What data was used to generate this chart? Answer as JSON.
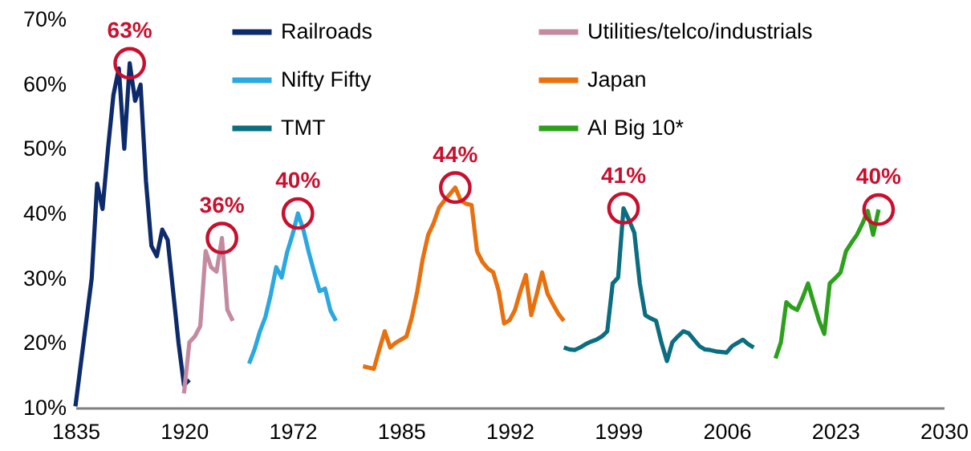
{
  "chart_data": {
    "type": "line",
    "legend": "top",
    "grid": false,
    "line_style": "solid",
    "marker": "none",
    "categories": [
      "1835",
      null,
      null,
      null,
      null,
      null,
      null,
      null,
      null,
      null,
      null,
      null,
      null,
      null,
      null,
      null,
      null,
      null,
      null,
      null,
      "1920",
      null,
      null,
      null,
      null,
      null,
      null,
      null,
      null,
      null,
      null,
      null,
      null,
      null,
      null,
      null,
      null,
      null,
      null,
      null,
      "1972",
      null,
      null,
      null,
      null,
      null,
      null,
      null,
      null,
      null,
      null,
      null,
      null,
      null,
      null,
      null,
      null,
      null,
      null,
      null,
      "1985",
      null,
      null,
      null,
      null,
      null,
      null,
      null,
      null,
      null,
      null,
      null,
      null,
      null,
      null,
      null,
      null,
      null,
      null,
      null,
      "1992",
      null,
      null,
      null,
      null,
      null,
      null,
      null,
      null,
      null,
      null,
      null,
      null,
      null,
      null,
      null,
      null,
      null,
      null,
      null,
      "1999",
      null,
      null,
      null,
      null,
      null,
      null,
      null,
      null,
      null,
      null,
      null,
      null,
      null,
      null,
      null,
      null,
      null,
      null,
      null,
      "2006",
      null,
      null,
      null,
      null,
      null,
      null,
      null,
      null,
      null,
      null,
      null,
      null,
      null,
      null,
      null,
      null,
      null,
      null,
      null,
      "2023",
      null,
      null,
      null,
      null,
      null,
      null,
      null,
      null,
      null,
      null,
      null,
      null,
      null,
      null,
      null,
      null,
      null,
      null,
      null,
      "2030"
    ],
    "ylim": [
      10,
      70
    ],
    "yticks": [
      {
        "value": 10,
        "label": "10%"
      },
      {
        "value": 20,
        "label": "20%"
      },
      {
        "value": 30,
        "label": "30%"
      },
      {
        "value": 40,
        "label": "40%"
      },
      {
        "value": 50,
        "label": "50%"
      },
      {
        "value": 60,
        "label": "60%"
      },
      {
        "value": 70,
        "label": "70%"
      }
    ],
    "series": [
      {
        "name": "Railroads",
        "color": "#0d2b6b",
        "values": [
          10.2,
          16.8,
          23.4,
          30,
          44.6,
          40.7,
          50,
          58.3,
          62.4,
          50,
          63.2,
          57.4,
          59.9,
          45,
          35,
          33.4,
          37.5,
          35.9,
          28,
          20,
          13.5,
          14.3,
          null,
          null,
          null,
          null,
          null,
          null,
          null,
          null,
          null,
          null,
          null,
          null,
          null,
          null,
          null,
          null,
          null,
          null,
          null,
          null,
          null,
          null,
          null,
          null,
          null,
          null,
          null,
          null,
          null,
          null,
          null,
          null,
          null,
          null,
          null,
          null,
          null,
          null,
          null,
          null,
          null,
          null,
          null,
          null,
          null,
          null,
          null,
          null,
          null,
          null,
          null,
          null,
          null,
          null,
          null,
          null,
          null,
          null,
          null,
          null,
          null,
          null,
          null,
          null,
          null,
          null,
          null,
          null,
          null,
          null,
          null,
          null,
          null,
          null,
          null,
          null,
          null,
          null,
          null,
          null,
          null,
          null,
          null,
          null,
          null,
          null,
          null,
          null,
          null,
          null,
          null,
          null,
          null,
          null,
          null,
          null,
          null,
          null,
          null,
          null,
          null,
          null,
          null,
          null,
          null,
          null,
          null,
          null,
          null,
          null,
          null,
          null,
          null,
          null,
          null,
          null,
          null,
          null,
          null,
          null,
          null,
          null,
          null,
          null,
          null,
          null,
          null,
          null,
          null,
          null,
          null,
          null,
          null,
          null,
          null,
          null,
          null,
          null,
          null
        ]
      },
      {
        "name": "Utilities/telco/industrials",
        "color": "#c48aa0",
        "values": [
          null,
          null,
          null,
          null,
          null,
          null,
          null,
          null,
          null,
          null,
          null,
          null,
          null,
          null,
          null,
          null,
          null,
          null,
          null,
          null,
          12.2,
          20.1,
          21,
          22.6,
          34.2,
          31.7,
          31,
          36.2,
          25.1,
          23.4,
          null,
          null,
          null,
          null,
          null,
          null,
          null,
          null,
          null,
          null,
          null,
          null,
          null,
          null,
          null,
          null,
          null,
          null,
          null,
          null,
          null,
          null,
          null,
          null,
          null,
          null,
          null,
          null,
          null,
          null,
          null,
          null,
          null,
          null,
          null,
          null,
          null,
          null,
          null,
          null,
          null,
          null,
          null,
          null,
          null,
          null,
          null,
          null,
          null,
          null,
          null,
          null,
          null,
          null,
          null,
          null,
          null,
          null,
          null,
          null,
          null,
          null,
          null,
          null,
          null,
          null,
          null,
          null,
          null,
          null,
          null,
          null,
          null,
          null,
          null,
          null,
          null,
          null,
          null,
          null,
          null,
          null,
          null,
          null,
          null,
          null,
          null,
          null,
          null,
          null,
          null,
          null,
          null,
          null,
          null,
          null,
          null,
          null,
          null,
          null,
          null,
          null,
          null,
          null,
          null,
          null,
          null,
          null,
          null,
          null,
          null,
          null,
          null,
          null,
          null,
          null,
          null,
          null,
          null,
          null,
          null,
          null,
          null,
          null,
          null,
          null,
          null,
          null,
          null,
          null,
          null
        ]
      },
      {
        "name": "Nifty Fifty",
        "color": "#2aa8e0",
        "values": [
          null,
          null,
          null,
          null,
          null,
          null,
          null,
          null,
          null,
          null,
          null,
          null,
          null,
          null,
          null,
          null,
          null,
          null,
          null,
          null,
          null,
          null,
          null,
          null,
          null,
          null,
          null,
          null,
          null,
          null,
          null,
          null,
          16.8,
          19,
          21.8,
          24,
          27.5,
          31.7,
          30.1,
          34,
          36.7,
          40,
          37.5,
          34,
          30.9,
          28,
          28.4,
          25,
          23.4,
          null,
          null,
          null,
          null,
          null,
          null,
          null,
          null,
          null,
          null,
          null,
          null,
          null,
          null,
          null,
          null,
          null,
          null,
          null,
          null,
          null,
          null,
          null,
          null,
          null,
          null,
          null,
          null,
          null,
          null,
          null,
          null,
          null,
          null,
          null,
          null,
          null,
          null,
          null,
          null,
          null,
          null,
          null,
          null,
          null,
          null,
          null,
          null,
          null,
          null,
          null,
          null,
          null,
          null,
          null,
          null,
          null,
          null,
          null,
          null,
          null,
          null,
          null,
          null,
          null,
          null,
          null,
          null,
          null,
          null,
          null,
          null,
          null,
          null,
          null,
          null,
          null,
          null,
          null,
          null,
          null,
          null,
          null,
          null,
          null,
          null,
          null,
          null,
          null,
          null,
          null,
          null,
          null,
          null,
          null,
          null,
          null,
          null,
          null,
          null,
          null,
          null,
          null,
          null,
          null,
          null,
          null,
          null,
          null,
          null,
          null,
          null
        ]
      },
      {
        "name": "Japan",
        "color": "#e8700e",
        "values": [
          null,
          null,
          null,
          null,
          null,
          null,
          null,
          null,
          null,
          null,
          null,
          null,
          null,
          null,
          null,
          null,
          null,
          null,
          null,
          null,
          null,
          null,
          null,
          null,
          null,
          null,
          null,
          null,
          null,
          null,
          null,
          null,
          null,
          null,
          null,
          null,
          null,
          null,
          null,
          null,
          null,
          null,
          null,
          null,
          null,
          null,
          null,
          null,
          null,
          null,
          null,
          null,
          null,
          16.4,
          16.2,
          16,
          19,
          21.8,
          19.3,
          20,
          20.5,
          21,
          24,
          28,
          33,
          36.7,
          38.5,
          40.9,
          42,
          43,
          44,
          42,
          41.5,
          41.3,
          34.2,
          32.5,
          31.5,
          30.9,
          28,
          23,
          23.5,
          25.1,
          28,
          30.5,
          24.3,
          27.5,
          30.9,
          27.6,
          26,
          24.5,
          23.4,
          null,
          null,
          null,
          null,
          null,
          null,
          null,
          null,
          null,
          null,
          null,
          null,
          null,
          null,
          null,
          null,
          null,
          null,
          null,
          null,
          null,
          null,
          null,
          null,
          null,
          null,
          null,
          null,
          null,
          null,
          null,
          null,
          null,
          null,
          null,
          null,
          null,
          null,
          null,
          null,
          null,
          null,
          null,
          null,
          null,
          null,
          null,
          null,
          null,
          null,
          null,
          null,
          null,
          null,
          null,
          null,
          null,
          null,
          null,
          null,
          null,
          null,
          null,
          null,
          null,
          null,
          null,
          null,
          null,
          null
        ]
      },
      {
        "name": "TMT",
        "color": "#0b6e80",
        "values": [
          null,
          null,
          null,
          null,
          null,
          null,
          null,
          null,
          null,
          null,
          null,
          null,
          null,
          null,
          null,
          null,
          null,
          null,
          null,
          null,
          null,
          null,
          null,
          null,
          null,
          null,
          null,
          null,
          null,
          null,
          null,
          null,
          null,
          null,
          null,
          null,
          null,
          null,
          null,
          null,
          null,
          null,
          null,
          null,
          null,
          null,
          null,
          null,
          null,
          null,
          null,
          null,
          null,
          null,
          null,
          null,
          null,
          null,
          null,
          null,
          null,
          null,
          null,
          null,
          null,
          null,
          null,
          null,
          null,
          null,
          null,
          null,
          null,
          null,
          null,
          null,
          null,
          null,
          null,
          null,
          null,
          null,
          null,
          null,
          null,
          null,
          null,
          null,
          null,
          null,
          19.3,
          19,
          18.9,
          19.3,
          19.8,
          20.2,
          20.5,
          21,
          21.8,
          29.2,
          30.1,
          40.8,
          39,
          37,
          29.2,
          24.3,
          23.8,
          23.4,
          20,
          17.2,
          20.1,
          21,
          21.8,
          21.5,
          20.5,
          19.5,
          19,
          18.9,
          18.7,
          18.6,
          18.5,
          19.5,
          20,
          20.5,
          19.8,
          19.3,
          null,
          null,
          null,
          null,
          null,
          null,
          null,
          null,
          null,
          null,
          null,
          null,
          null,
          null,
          null,
          null,
          null,
          null,
          null,
          null,
          null,
          null,
          null,
          null,
          null,
          null,
          null,
          null,
          null,
          null,
          null,
          null,
          null,
          null,
          null
        ]
      },
      {
        "name": "AI Big 10*",
        "color": "#2ca01c",
        "values": [
          null,
          null,
          null,
          null,
          null,
          null,
          null,
          null,
          null,
          null,
          null,
          null,
          null,
          null,
          null,
          null,
          null,
          null,
          null,
          null,
          null,
          null,
          null,
          null,
          null,
          null,
          null,
          null,
          null,
          null,
          null,
          null,
          null,
          null,
          null,
          null,
          null,
          null,
          null,
          null,
          null,
          null,
          null,
          null,
          null,
          null,
          null,
          null,
          null,
          null,
          null,
          null,
          null,
          null,
          null,
          null,
          null,
          null,
          null,
          null,
          null,
          null,
          null,
          null,
          null,
          null,
          null,
          null,
          null,
          null,
          null,
          null,
          null,
          null,
          null,
          null,
          null,
          null,
          null,
          null,
          null,
          null,
          null,
          null,
          null,
          null,
          null,
          null,
          null,
          null,
          null,
          null,
          null,
          null,
          null,
          null,
          null,
          null,
          null,
          null,
          null,
          null,
          null,
          null,
          null,
          null,
          null,
          null,
          null,
          null,
          null,
          null,
          null,
          null,
          null,
          null,
          null,
          null,
          null,
          null,
          null,
          null,
          null,
          null,
          null,
          null,
          null,
          null,
          null,
          17.6,
          20.1,
          26.3,
          25.5,
          25.1,
          27,
          29.2,
          26.3,
          23.5,
          21.4,
          29.2,
          30,
          30.9,
          34.2,
          35.5,
          36.7,
          38.4,
          40.4,
          36.7,
          40.6,
          null,
          null,
          null,
          null,
          null,
          null,
          null,
          null,
          null,
          null,
          null,
          null
        ]
      }
    ],
    "annotations": [
      {
        "text": "63%",
        "y": 63.2
      },
      {
        "text": "36%",
        "y": 36.2
      },
      {
        "text": "40%",
        "y": 40
      },
      {
        "text": "44%",
        "y": 44
      },
      {
        "text": "41%",
        "y": 40.8
      },
      {
        "text": "40%",
        "y": 40.6
      }
    ]
  }
}
